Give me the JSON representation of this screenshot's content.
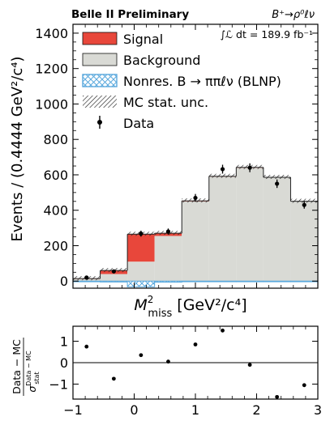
{
  "chart_data": [
    {
      "type": "bar",
      "subtype": "stacked-histogram",
      "title_left": "Belle II Preliminary",
      "title_right": "B⁺→ρ⁰ℓν",
      "luminosity": "∫ℒ dt = 189.9 fb⁻¹",
      "xlabel_main": "M",
      "xlabel_super": "2",
      "xlabel_sub": "miss",
      "xlabel_units": " [GeV²/c⁴]",
      "ylabel": "Events / (0.4444 GeV²/c⁴)",
      "x_edges": [
        -1.0,
        -0.5556,
        -0.1111,
        0.3333,
        0.7778,
        1.2222,
        1.6667,
        2.1111,
        2.5556,
        3.0
      ],
      "xlim": [
        -1.0,
        3.0
      ],
      "ylim": [
        -40,
        1450
      ],
      "yticks": [
        0,
        200,
        400,
        600,
        800,
        1000,
        1200,
        1400
      ],
      "legend_position": "top-left",
      "series": [
        {
          "name": "Signal",
          "color": "#e8473b",
          "values": [
            2,
            20,
            155,
            15,
            3,
            2,
            2,
            1,
            1
          ]
        },
        {
          "name": "Background",
          "color": "#d9dad5",
          "values": [
            12,
            40,
            110,
            255,
            450,
            590,
            640,
            585,
            450
          ]
        },
        {
          "name": "Nonres. B → ππℓν (BLNP)",
          "color": "#5aa9dd",
          "values": [
            -3,
            -5,
            -32,
            -6,
            -3,
            -2,
            -2,
            -2,
            -2
          ]
        }
      ],
      "mc_unc_label": "MC stat. unc.",
      "data": {
        "name": "Data",
        "x": [
          -0.778,
          -0.333,
          0.111,
          0.556,
          1.0,
          1.444,
          1.889,
          2.333,
          2.778
        ],
        "y": [
          20,
          55,
          268,
          280,
          470,
          632,
          640,
          550,
          430
        ],
        "yerr": [
          5,
          9,
          17,
          17,
          22,
          25,
          25,
          24,
          21
        ]
      }
    },
    {
      "type": "scatter",
      "ylabel_top": "Data − MC",
      "ylabel_bottom_sym": "σ",
      "ylabel_bottom_sup": "Data − MC",
      "ylabel_bottom_sub": "stat",
      "xlim": [
        -1.0,
        3.0
      ],
      "ylim": [
        -1.7,
        1.7
      ],
      "xticks": [
        -1,
        0,
        1,
        2,
        3
      ],
      "yticks": [
        -1,
        0,
        1
      ],
      "x": [
        -0.778,
        -0.333,
        0.111,
        0.556,
        1.0,
        1.444,
        1.889,
        2.333,
        2.778
      ],
      "y": [
        0.75,
        -0.75,
        0.35,
        0.05,
        0.85,
        1.5,
        -0.1,
        -1.6,
        -1.05
      ]
    }
  ]
}
